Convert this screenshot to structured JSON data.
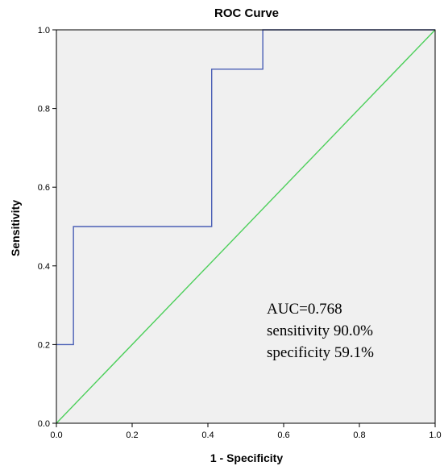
{
  "chart_data": {
    "type": "line",
    "title": "ROC Curve",
    "xlabel": "1 - Specificity",
    "ylabel": "Sensitivity",
    "xlim": [
      0,
      1
    ],
    "ylim": [
      0,
      1
    ],
    "x_ticks": [
      "0.0",
      "0.2",
      "0.4",
      "0.6",
      "0.8",
      "1.0"
    ],
    "y_ticks": [
      "0.0",
      "0.2",
      "0.4",
      "0.6",
      "0.8",
      "1.0"
    ],
    "grid": false,
    "series": [
      {
        "color": "#4a5fb5",
        "step": true,
        "points": [
          [
            0.0,
            0.2
          ],
          [
            0.045,
            0.2
          ],
          [
            0.045,
            0.5
          ],
          [
            0.41,
            0.5
          ],
          [
            0.41,
            0.9
          ],
          [
            0.545,
            0.9
          ],
          [
            0.545,
            1.0
          ],
          [
            1.0,
            1.0
          ]
        ]
      },
      {
        "color": "#4ccf5a",
        "points": [
          [
            0.0,
            0.0
          ],
          [
            1.0,
            1.0
          ]
        ]
      }
    ],
    "annotations": [
      "AUC=0.768",
      "sensitivity 90.0%",
      "specificity 59.1%"
    ],
    "plot_background": "#f0f0f0"
  }
}
